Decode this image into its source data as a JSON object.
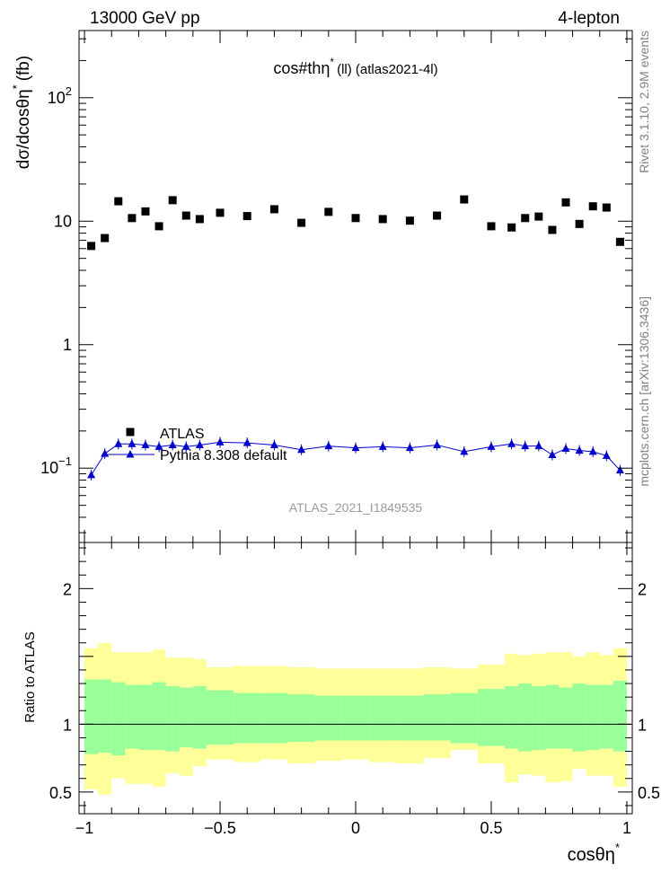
{
  "header": {
    "left": "13000 GeV pp",
    "right": "4-lepton"
  },
  "side_labels": {
    "rivet": "Rivet 3.1.10,  2.9M events",
    "mcplots": "mcplots.cern.ch [arXiv:1306.3436]"
  },
  "watermark": "ATLAS_2021_I1849535",
  "chart_data": [
    {
      "type": "scatter",
      "panel": "main",
      "title": "cos#thη",
      "title_sup": "*",
      "title_tail": "(ll) (atlas2021-4l)",
      "ylabel": "dσ/dcosθη",
      "ylabel_sup": "*",
      "ylabel_tail": "(fb)",
      "yscale": "log",
      "xlim": [
        -1.02,
        1.02
      ],
      "ylim": [
        0.025,
        350
      ],
      "x_ticks": [
        -1,
        -0.5,
        0,
        0.5,
        1
      ],
      "y_ticks": [
        {
          "value": 0.1,
          "base": "10",
          "exp": "−1"
        },
        {
          "value": 1,
          "label": "1"
        },
        {
          "value": 10,
          "label": "10"
        },
        {
          "value": 100,
          "base": "10",
          "exp": "2"
        }
      ],
      "x": [
        -0.975,
        -0.925,
        -0.875,
        -0.825,
        -0.775,
        -0.725,
        -0.675,
        -0.625,
        -0.575,
        -0.5,
        -0.4,
        -0.3,
        -0.2,
        -0.1,
        0.0,
        0.1,
        0.2,
        0.3,
        0.4,
        0.5,
        0.575,
        0.625,
        0.675,
        0.725,
        0.775,
        0.825,
        0.875,
        0.925,
        0.975
      ],
      "series": [
        {
          "name": "ATLAS",
          "marker": "square",
          "color": "#000000",
          "values": [
            6.3,
            7.3,
            14.5,
            10.6,
            12.0,
            9.1,
            14.8,
            11.1,
            10.4,
            11.7,
            11.0,
            12.5,
            9.7,
            11.9,
            10.6,
            10.4,
            10.1,
            11.1,
            15.0,
            9.1,
            8.9,
            10.6,
            10.9,
            8.5,
            14.2,
            9.5,
            13.2,
            12.9,
            6.8
          ]
        },
        {
          "name": "Pythia 8.308 default",
          "marker": "triangle",
          "color": "#0000cc",
          "values": [
            0.088,
            0.131,
            0.157,
            0.157,
            0.154,
            0.149,
            0.154,
            0.149,
            0.154,
            0.162,
            0.16,
            0.154,
            0.141,
            0.151,
            0.146,
            0.149,
            0.146,
            0.154,
            0.136,
            0.149,
            0.157,
            0.151,
            0.151,
            0.128,
            0.144,
            0.139,
            0.136,
            0.126,
            0.096
          ]
        }
      ]
    },
    {
      "type": "area",
      "panel": "ratio",
      "ylabel": "Ratio to ATLAS",
      "xlabel": "cosθη",
      "xlabel_sup": "*",
      "xlim": [
        -1.02,
        1.02
      ],
      "ylim": [
        0.34,
        2.34
      ],
      "y_ticks": [
        0.5,
        1,
        2
      ],
      "reference_line": 1,
      "bin_edges": [
        -1.0,
        -0.95,
        -0.9,
        -0.85,
        -0.8,
        -0.75,
        -0.7,
        -0.65,
        -0.6,
        -0.55,
        -0.45,
        -0.35,
        -0.25,
        -0.15,
        -0.05,
        0.05,
        0.15,
        0.25,
        0.35,
        0.45,
        0.55,
        0.6,
        0.65,
        0.7,
        0.75,
        0.8,
        0.85,
        0.9,
        0.95,
        1.0
      ],
      "bands": [
        {
          "name": "green",
          "color": "#99ff99",
          "low": [
            0.78,
            0.79,
            0.77,
            0.82,
            0.81,
            0.81,
            0.8,
            0.83,
            0.82,
            0.85,
            0.86,
            0.86,
            0.87,
            0.88,
            0.88,
            0.88,
            0.88,
            0.88,
            0.86,
            0.84,
            0.82,
            0.8,
            0.81,
            0.82,
            0.82,
            0.8,
            0.81,
            0.82,
            0.8
          ],
          "high": [
            1.33,
            1.33,
            1.31,
            1.29,
            1.29,
            1.31,
            1.28,
            1.27,
            1.28,
            1.25,
            1.23,
            1.23,
            1.22,
            1.21,
            1.21,
            1.21,
            1.21,
            1.22,
            1.23,
            1.26,
            1.28,
            1.3,
            1.28,
            1.29,
            1.27,
            1.3,
            1.29,
            1.29,
            1.32
          ]
        },
        {
          "name": "yellow",
          "color": "#ffff99",
          "low": [
            0.52,
            0.48,
            0.6,
            0.56,
            0.56,
            0.54,
            0.64,
            0.62,
            0.69,
            0.74,
            0.72,
            0.74,
            0.71,
            0.73,
            0.74,
            0.72,
            0.71,
            0.75,
            0.81,
            0.71,
            0.57,
            0.63,
            0.62,
            0.57,
            0.58,
            0.67,
            0.62,
            0.62,
            0.54
          ],
          "high": [
            1.56,
            1.6,
            1.53,
            1.53,
            1.53,
            1.55,
            1.49,
            1.49,
            1.48,
            1.42,
            1.43,
            1.43,
            1.42,
            1.41,
            1.41,
            1.41,
            1.41,
            1.42,
            1.41,
            1.44,
            1.52,
            1.51,
            1.52,
            1.53,
            1.53,
            1.5,
            1.53,
            1.51,
            1.56
          ]
        }
      ]
    }
  ]
}
